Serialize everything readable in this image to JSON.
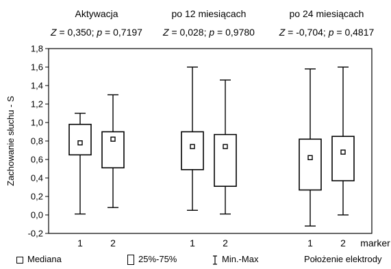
{
  "chart_data": {
    "type": "boxplot",
    "ylabel": "Zachowanie słuchu - S",
    "xlabel": "marker",
    "ylim": [
      -0.2,
      1.8
    ],
    "yticks": [
      "-0,2",
      "0,0",
      "0,2",
      "0,4",
      "0,6",
      "0,8",
      "1,0",
      "1,2",
      "1,4",
      "1,6",
      "1,8"
    ],
    "groups": [
      {
        "title": "Aktywacja",
        "stats": {
          "Z": "0,350",
          "p": "0,7197"
        },
        "boxes": [
          {
            "marker": "1",
            "min": 0.01,
            "q1": 0.65,
            "median": 0.78,
            "q3": 0.98,
            "max": 1.1
          },
          {
            "marker": "2",
            "min": 0.08,
            "q1": 0.51,
            "median": 0.82,
            "q3": 0.9,
            "max": 1.3
          }
        ]
      },
      {
        "title": "po 12 miesiącach",
        "stats": {
          "Z": "0,028",
          "p": "0,9780"
        },
        "boxes": [
          {
            "marker": "1",
            "min": 0.05,
            "q1": 0.49,
            "median": 0.74,
            "q3": 0.9,
            "max": 1.6
          },
          {
            "marker": "2",
            "min": 0.01,
            "q1": 0.31,
            "median": 0.74,
            "q3": 0.87,
            "max": 1.46
          }
        ]
      },
      {
        "title": "po 24 miesiącach",
        "stats": {
          "Z": "-0,704",
          "p": "0,4817"
        },
        "boxes": [
          {
            "marker": "1",
            "min": -0.12,
            "q1": 0.27,
            "median": 0.62,
            "q3": 0.82,
            "max": 1.58
          },
          {
            "marker": "2",
            "min": 0.0,
            "q1": 0.37,
            "median": 0.68,
            "q3": 0.85,
            "max": 1.6
          }
        ]
      }
    ],
    "legend": {
      "median": "Mediana",
      "box": "25%-75%",
      "whisker": "Min.-Max",
      "title": "Położenie elektrody"
    },
    "grid": false
  }
}
